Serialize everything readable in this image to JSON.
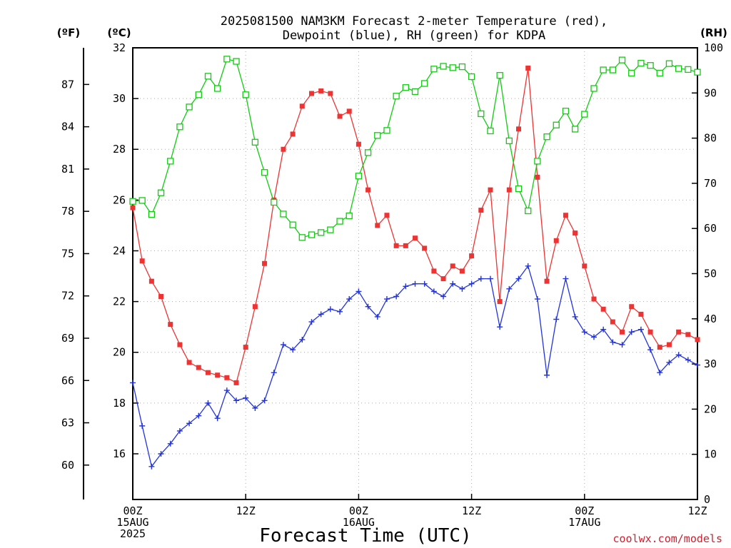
{
  "title": {
    "line1": "2025081500 NAM3KM Forecast 2-meter Temperature (red),",
    "line2": "Dewpoint (blue), RH (green) for KDPA"
  },
  "units": {
    "fahrenheit": "(ºF)",
    "celsius": "(ºC)",
    "rh": "(RH)"
  },
  "xlabel": "Forecast Time (UTC)",
  "credit": "coolwx.com/models",
  "colors": {
    "temperature": "#ee3333",
    "dewpoint": "#2233dd",
    "rh": "#11cc11"
  },
  "chart_data": {
    "type": "line",
    "title": "2025081500 NAM3KM Forecast 2-meter Temperature (red), Dewpoint (blue), RH (green) for KDPA",
    "xlabel": "Forecast Time (UTC)",
    "x_unit": "forecast hour from 00Z 15AUG 2025",
    "x": [
      0,
      1,
      2,
      3,
      4,
      5,
      6,
      7,
      8,
      9,
      10,
      11,
      12,
      13,
      14,
      15,
      16,
      17,
      18,
      19,
      20,
      21,
      22,
      23,
      24,
      25,
      26,
      27,
      28,
      29,
      30,
      31,
      32,
      33,
      34,
      35,
      36,
      37,
      38,
      39,
      40,
      41,
      42,
      43,
      44,
      45,
      46,
      47,
      48,
      49,
      50,
      51,
      52,
      53,
      54,
      55,
      56,
      57,
      58,
      59,
      60
    ],
    "xlim": [
      0,
      60
    ],
    "x_ticks": [
      {
        "hour": 0,
        "lines": [
          "00Z",
          "15AUG",
          "2025"
        ]
      },
      {
        "hour": 12,
        "lines": [
          "12Z"
        ]
      },
      {
        "hour": 24,
        "lines": [
          "00Z",
          "16AUG"
        ]
      },
      {
        "hour": 36,
        "lines": [
          "12Z"
        ]
      },
      {
        "hour": 48,
        "lines": [
          "00Z",
          "17AUG"
        ]
      },
      {
        "hour": 60,
        "lines": [
          "12Z"
        ]
      }
    ],
    "left_axis_celsius": {
      "ylim": [
        14.2,
        32
      ],
      "ticks": [
        "16",
        "18",
        "20",
        "22",
        "24",
        "26",
        "28",
        "30",
        "32"
      ]
    },
    "left_axis_fahrenheit": {
      "ticks": [
        "60",
        "63",
        "66",
        "69",
        "72",
        "75",
        "78",
        "81",
        "84",
        "87"
      ]
    },
    "right_axis_rh": {
      "ylim": [
        0,
        100
      ],
      "ticks": [
        "0",
        "10",
        "20",
        "30",
        "40",
        "50",
        "60",
        "70",
        "80",
        "90",
        "100"
      ]
    },
    "series": [
      {
        "name": "Temperature (red)",
        "axis": "celsius",
        "marker": "filled-square",
        "values": [
          25.7,
          23.6,
          22.8,
          22.2,
          21.1,
          20.3,
          19.6,
          19.4,
          19.2,
          19.1,
          19.0,
          18.8,
          20.2,
          21.8,
          23.5,
          26.0,
          28.0,
          28.6,
          29.7,
          30.2,
          30.3,
          30.2,
          29.3,
          29.5,
          28.2,
          26.4,
          25.0,
          25.4,
          24.2,
          24.2,
          24.5,
          24.1,
          23.2,
          22.9,
          23.4,
          23.2,
          23.8,
          25.6,
          26.4,
          22.0,
          26.4,
          28.8,
          31.2,
          26.9,
          22.8,
          24.4,
          25.4,
          24.7,
          23.4,
          22.1,
          21.7,
          21.2,
          20.8,
          21.8,
          21.5,
          20.8,
          20.2,
          20.3,
          20.8,
          20.7,
          20.5
        ]
      },
      {
        "name": "Dewpoint (blue)",
        "axis": "celsius",
        "marker": "plus",
        "values": [
          18.8,
          17.1,
          15.5,
          16.0,
          16.4,
          16.9,
          17.2,
          17.5,
          18.0,
          17.4,
          18.5,
          18.1,
          18.2,
          17.8,
          18.1,
          19.2,
          20.3,
          20.1,
          20.5,
          21.2,
          21.5,
          21.7,
          21.6,
          22.1,
          22.4,
          21.8,
          21.4,
          22.1,
          22.2,
          22.6,
          22.7,
          22.7,
          22.4,
          22.2,
          22.7,
          22.5,
          22.7,
          22.9,
          22.9,
          21.0,
          22.5,
          22.9,
          23.4,
          22.1,
          19.1,
          21.3,
          22.9,
          21.4,
          20.8,
          20.6,
          20.9,
          20.4,
          20.3,
          20.8,
          20.9,
          20.1,
          19.2,
          19.6,
          19.9,
          19.7,
          19.5
        ]
      },
      {
        "name": "RH (green)",
        "axis": "rh",
        "marker": "open-square",
        "values": [
          66.0,
          66.2,
          63.1,
          67.9,
          74.9,
          82.5,
          86.9,
          89.6,
          93.7,
          91.0,
          97.5,
          97.0,
          89.6,
          79.1,
          72.4,
          65.8,
          63.2,
          60.8,
          58.0,
          58.6,
          59.1,
          59.7,
          61.6,
          62.8,
          71.6,
          76.8,
          80.6,
          81.7,
          89.3,
          91.2,
          90.3,
          92.1,
          95.3,
          95.9,
          95.6,
          95.8,
          93.6,
          85.4,
          81.6,
          93.9,
          79.4,
          68.8,
          63.9,
          74.9,
          80.3,
          82.9,
          86.0,
          82.0,
          85.3,
          91.0,
          95.1,
          95.1,
          97.3,
          94.4,
          96.6,
          96.1,
          94.4,
          96.5,
          95.4,
          95.2,
          94.6
        ]
      }
    ]
  }
}
